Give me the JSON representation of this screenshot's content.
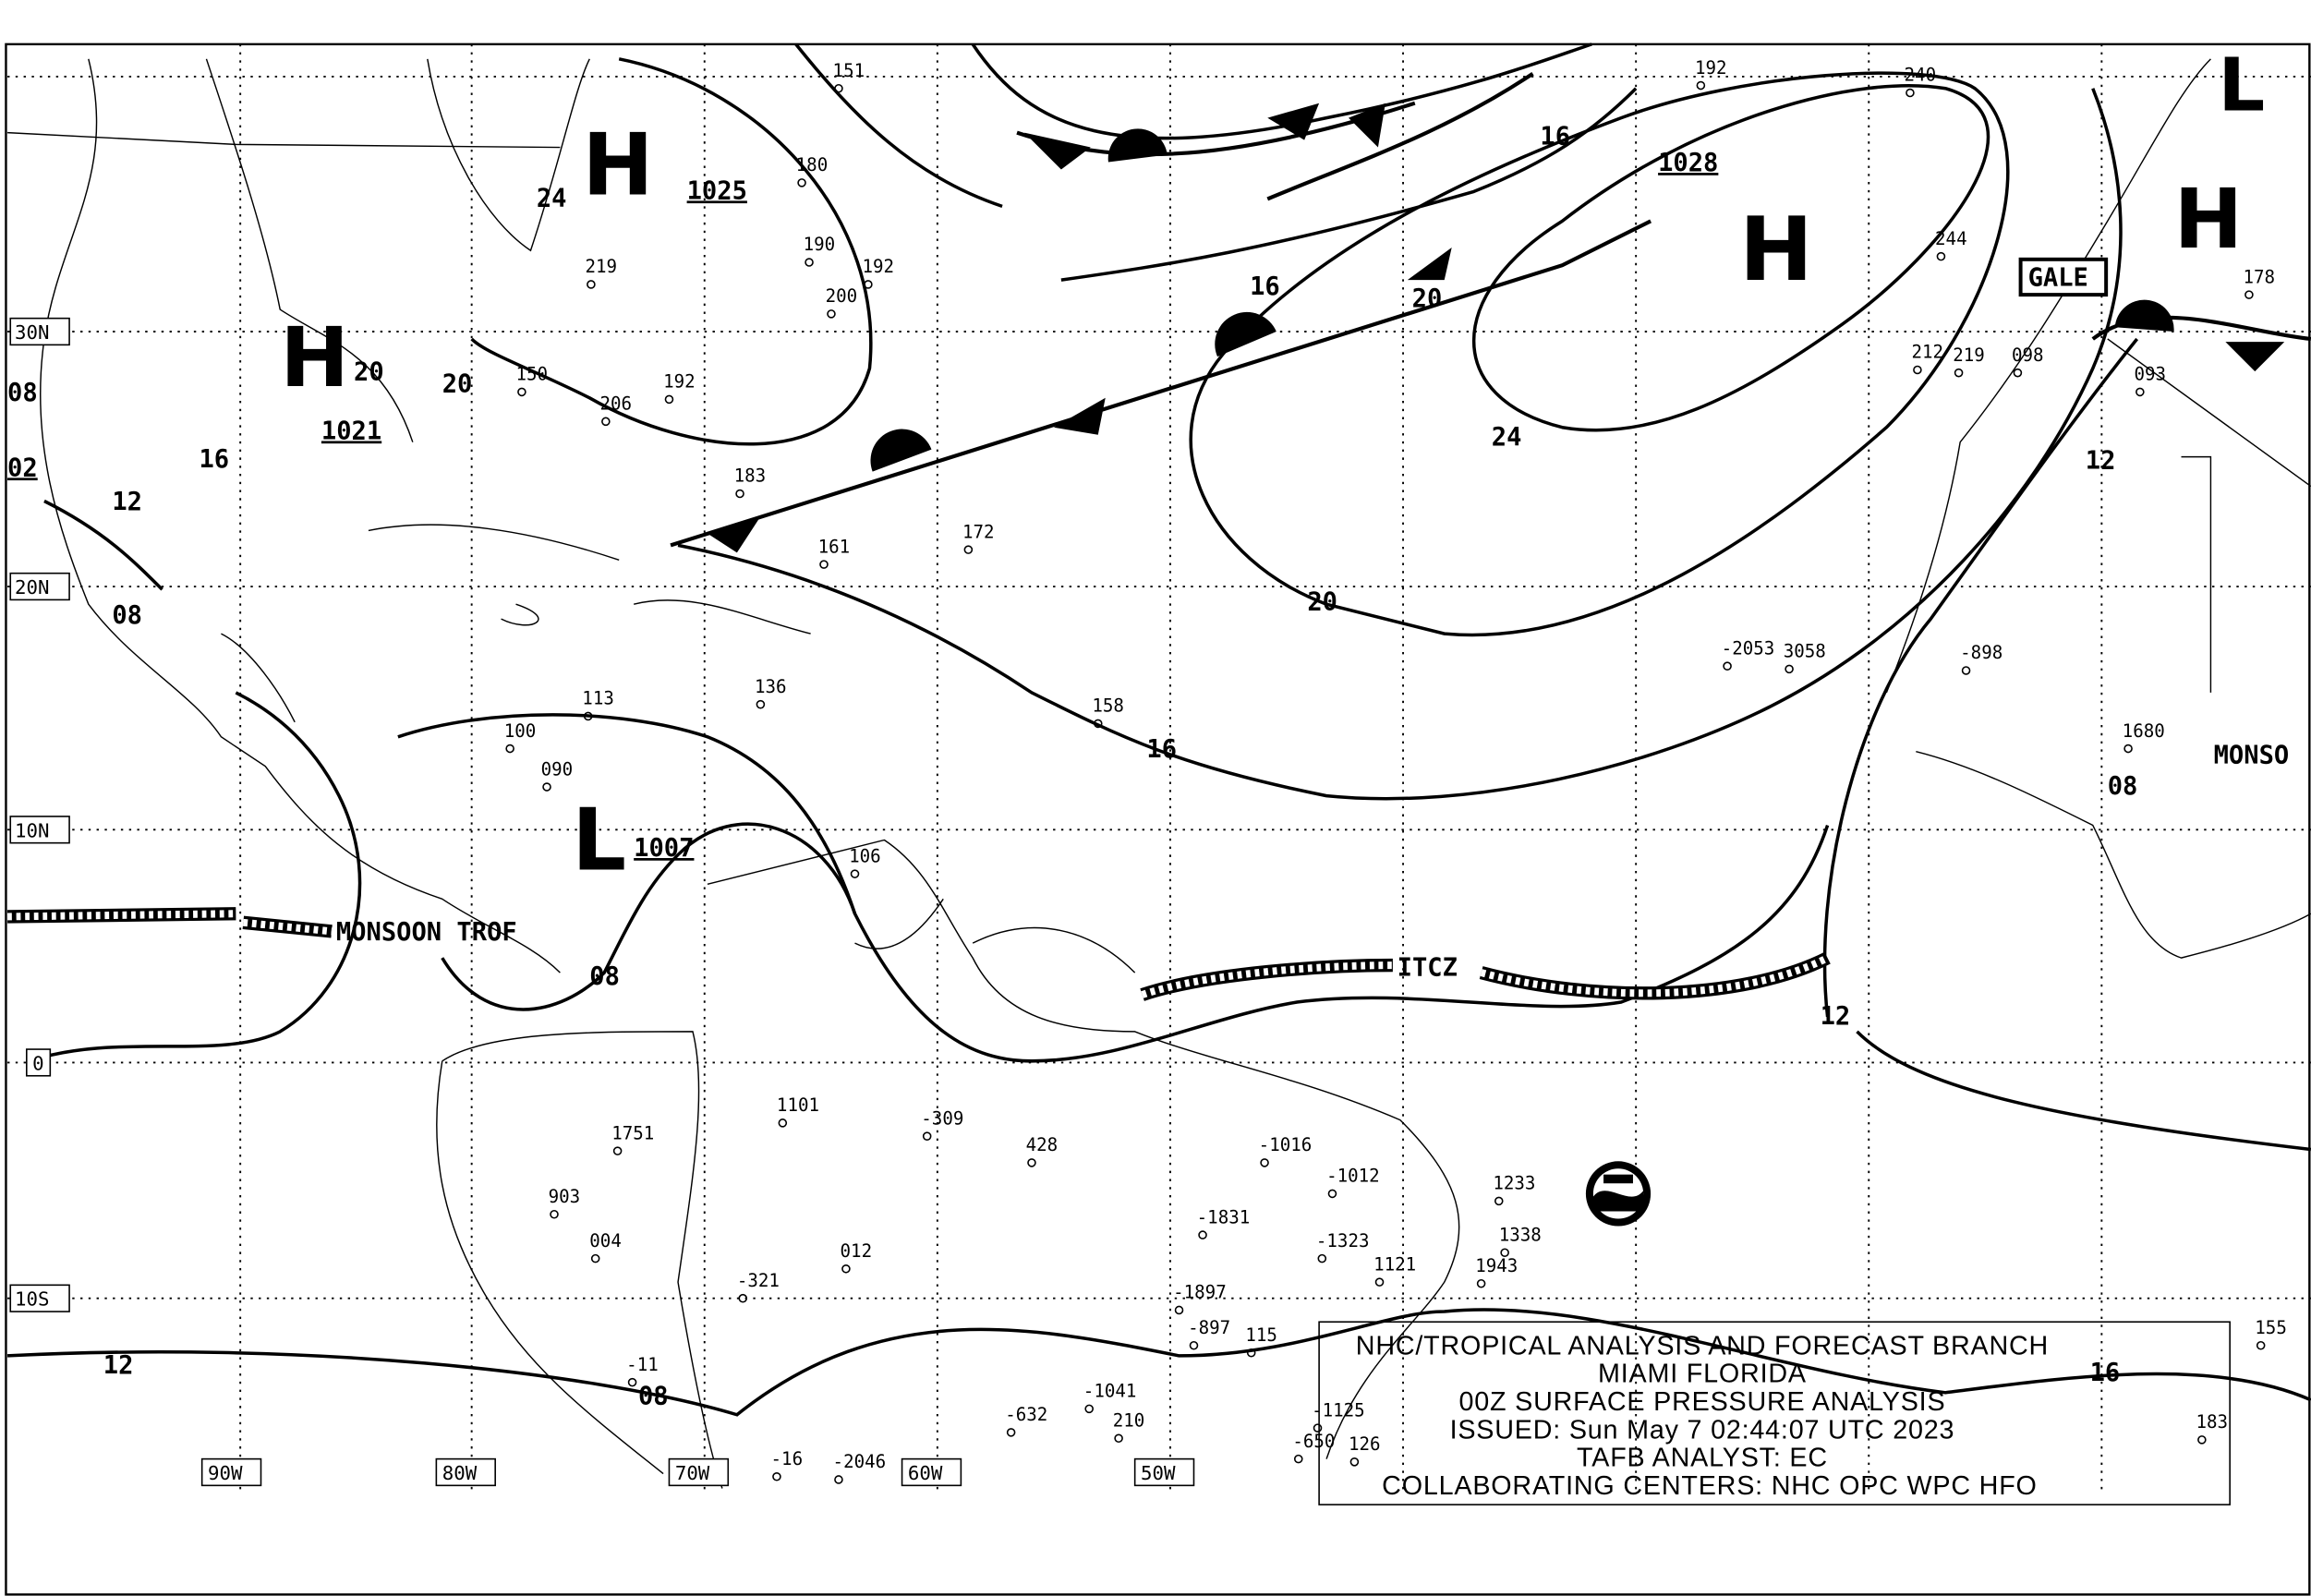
{
  "map": {
    "highs": [
      {
        "symbol": "H",
        "value": "24"
      },
      {
        "symbol": "H",
        "value": "1025"
      },
      {
        "symbol": "H",
        "value": "1028"
      },
      {
        "symbol": "H",
        "value": "20"
      },
      {
        "symbol": "H",
        "value": "1021"
      },
      {
        "symbol": "H",
        "value": ""
      }
    ],
    "lows": [
      {
        "symbol": "L",
        "value": "1007"
      },
      {
        "symbol": "L",
        "value": ""
      }
    ],
    "isobar_labels": [
      "16",
      "16",
      "20",
      "24",
      "20",
      "16",
      "20",
      "16",
      "12",
      "08",
      "12",
      "08",
      "08",
      "12",
      "16",
      "12",
      "08",
      "02",
      "08"
    ],
    "features": {
      "monsoon": "MONSOON TROF",
      "itcz": "ITCZ",
      "gale": "GALE",
      "monsoon_east": "MONSO"
    },
    "latitude_labels": [
      "30N",
      "20N",
      "10N",
      "0",
      "10S"
    ],
    "longitude_labels": [
      "90W",
      "80W",
      "70W",
      "60W",
      "50W"
    ],
    "observations": [
      "151",
      "192",
      "240",
      "180",
      "190",
      "192",
      "200",
      "219",
      "206",
      "192",
      "150",
      "183",
      "161",
      "172",
      "158",
      "136",
      "113",
      "100",
      "090",
      "106",
      "1101",
      "1751",
      "903",
      "004",
      "012",
      "-321",
      "-309",
      "428",
      "-1831",
      "-1323",
      "1121",
      "-1016",
      "-1012",
      "1233",
      "1338",
      "1943",
      "-1897",
      "-897",
      "115",
      "-1041",
      "210",
      "-632",
      "-2046",
      "-16",
      "-11",
      "-2053",
      "3058",
      "-898",
      "1680",
      "183",
      "244",
      "212",
      "219",
      "098",
      "093",
      "178",
      "155",
      "126",
      "-650",
      "-1125"
    ],
    "noaa_logo": "NOAA"
  },
  "title_block": {
    "line1": "NHC/TROPICAL ANALYSIS AND FORECAST BRANCH",
    "line2": "MIAMI FLORIDA",
    "line3": "00Z SURFACE PRESSURE ANALYSIS",
    "line4": "ISSUED: Sun May 7 02:44:07 UTC 2023",
    "line5": "TAFB ANALYST: EC",
    "line6": "COLLABORATING CENTERS: NHC OPC WPC HFO"
  }
}
